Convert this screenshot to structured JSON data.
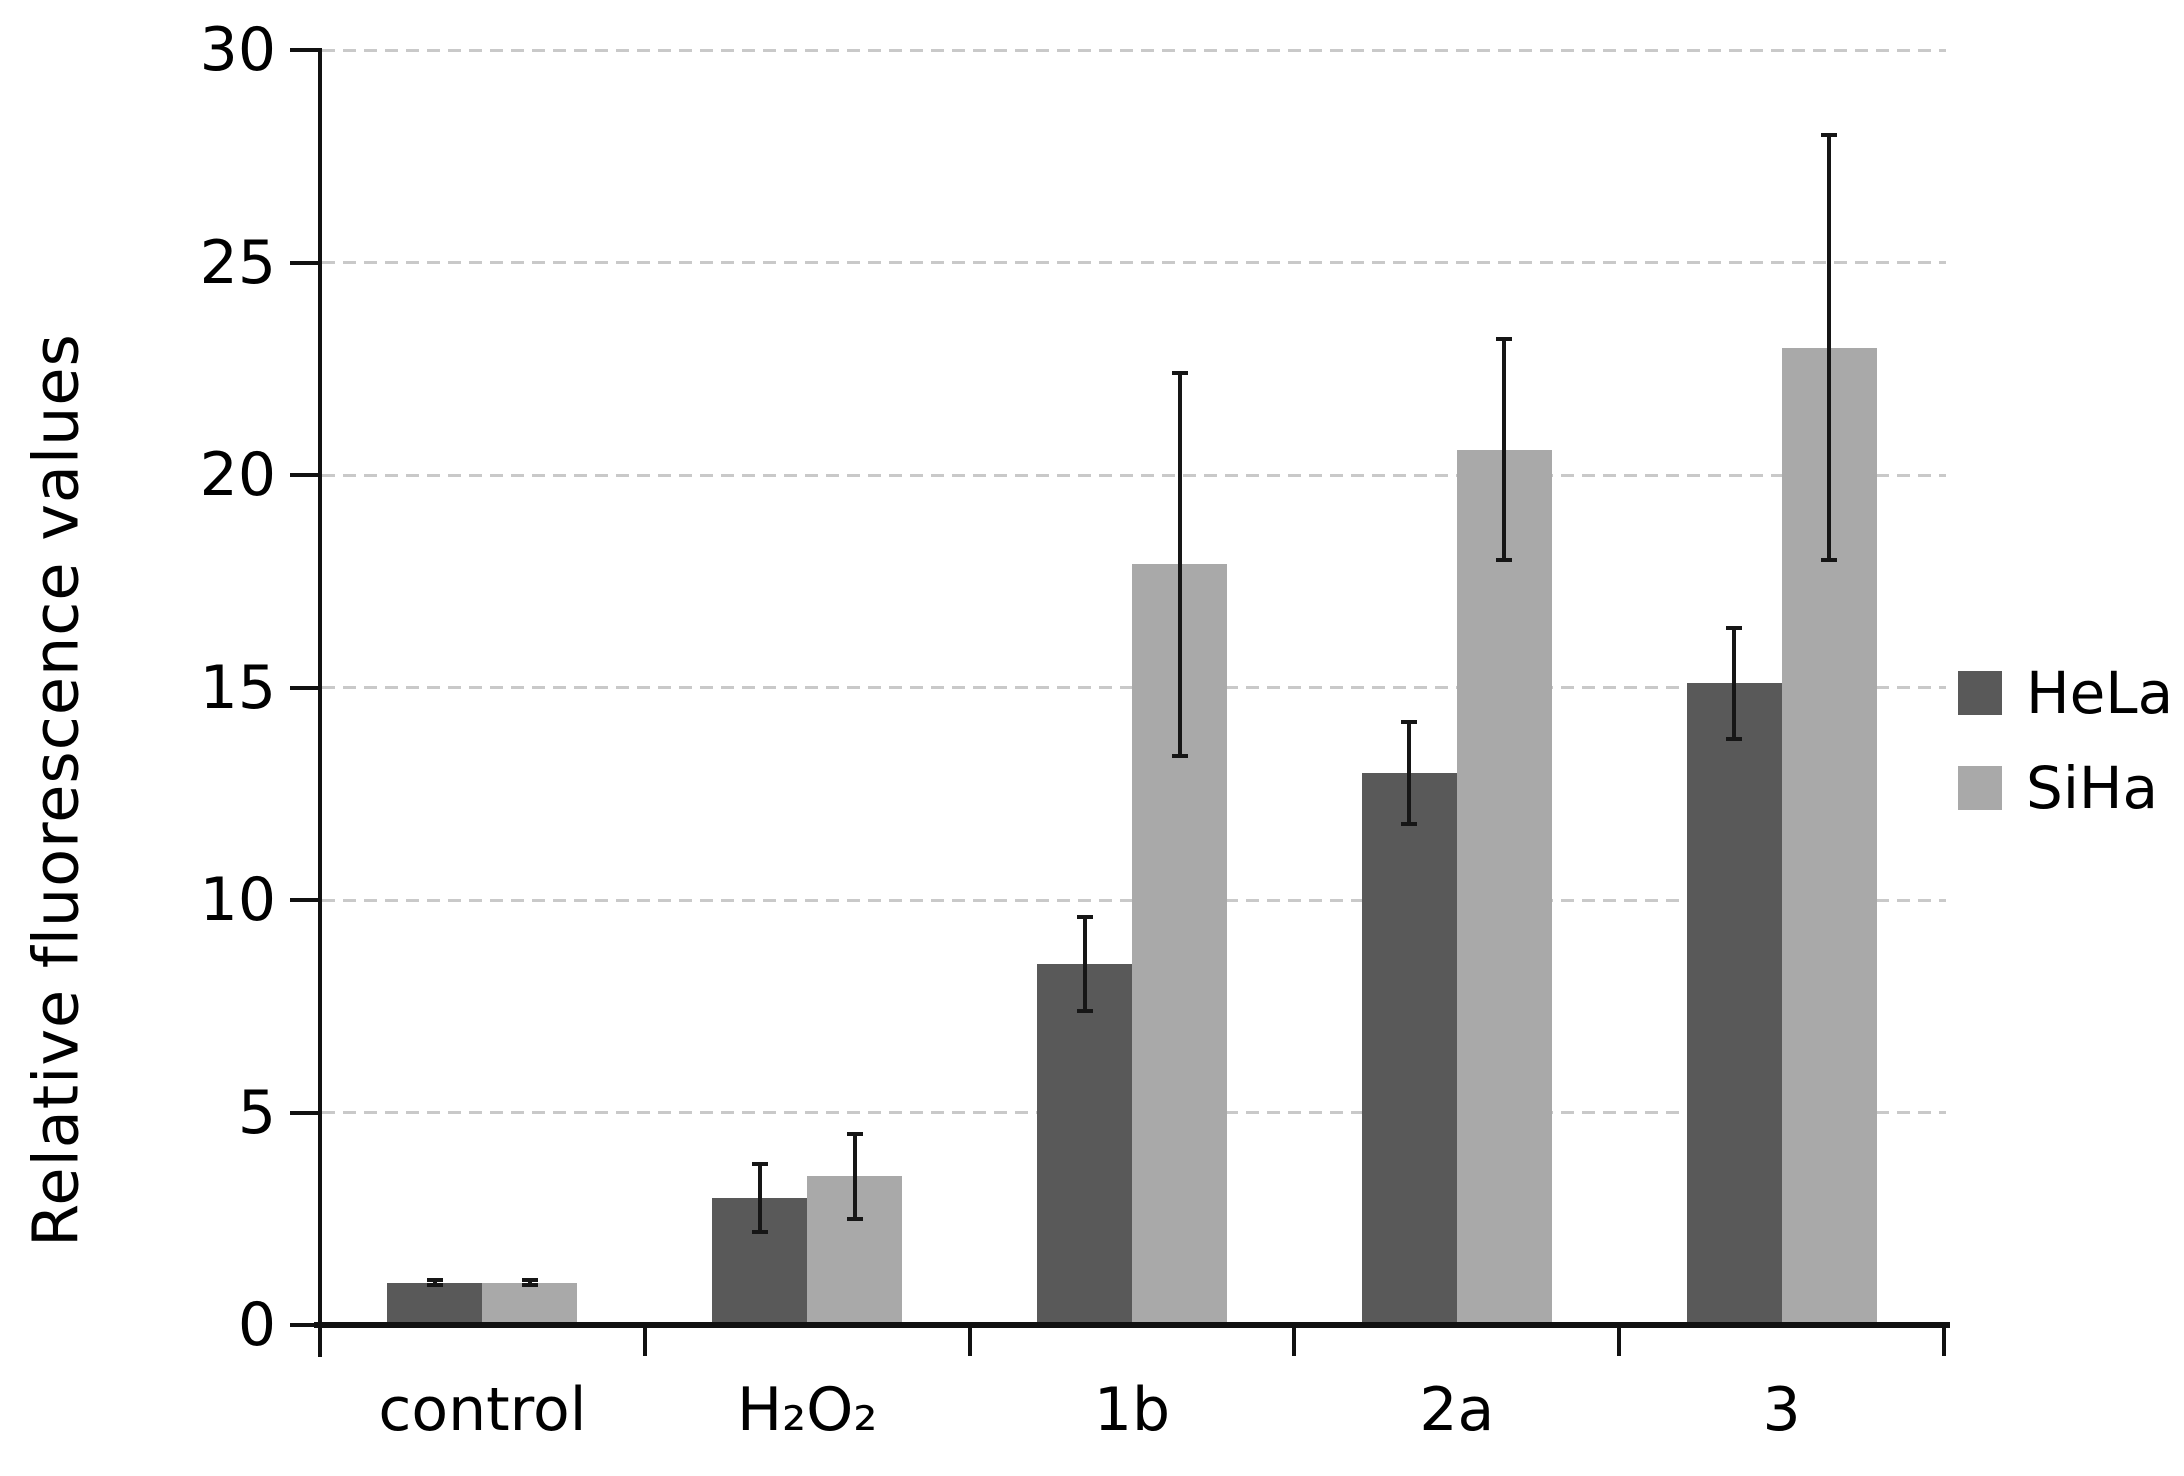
{
  "chart_data": {
    "type": "bar",
    "title": "",
    "xlabel": "",
    "ylabel": "Relative fluorescence values",
    "ylim": [
      0,
      30
    ],
    "yticks": [
      0,
      5,
      10,
      15,
      20,
      25,
      30
    ],
    "grid": "horizontal-dashed",
    "grid_color": "#c9c9c9",
    "axis_color": "#111111",
    "legend_position": "right",
    "categories": [
      "control",
      "H₂O₂",
      "1b",
      "2a",
      "3"
    ],
    "series": [
      {
        "name": "HeLa",
        "color": "#595959",
        "values": [
          1.0,
          3.0,
          8.5,
          13.0,
          15.1
        ],
        "errors": [
          0.06,
          0.8,
          1.1,
          1.2,
          1.3
        ]
      },
      {
        "name": "SiHa",
        "color": "#a9a9a9",
        "values": [
          1.0,
          3.5,
          17.9,
          20.6,
          23.0
        ],
        "errors": [
          0.06,
          1.0,
          4.5,
          2.6,
          5.0
        ]
      }
    ]
  }
}
